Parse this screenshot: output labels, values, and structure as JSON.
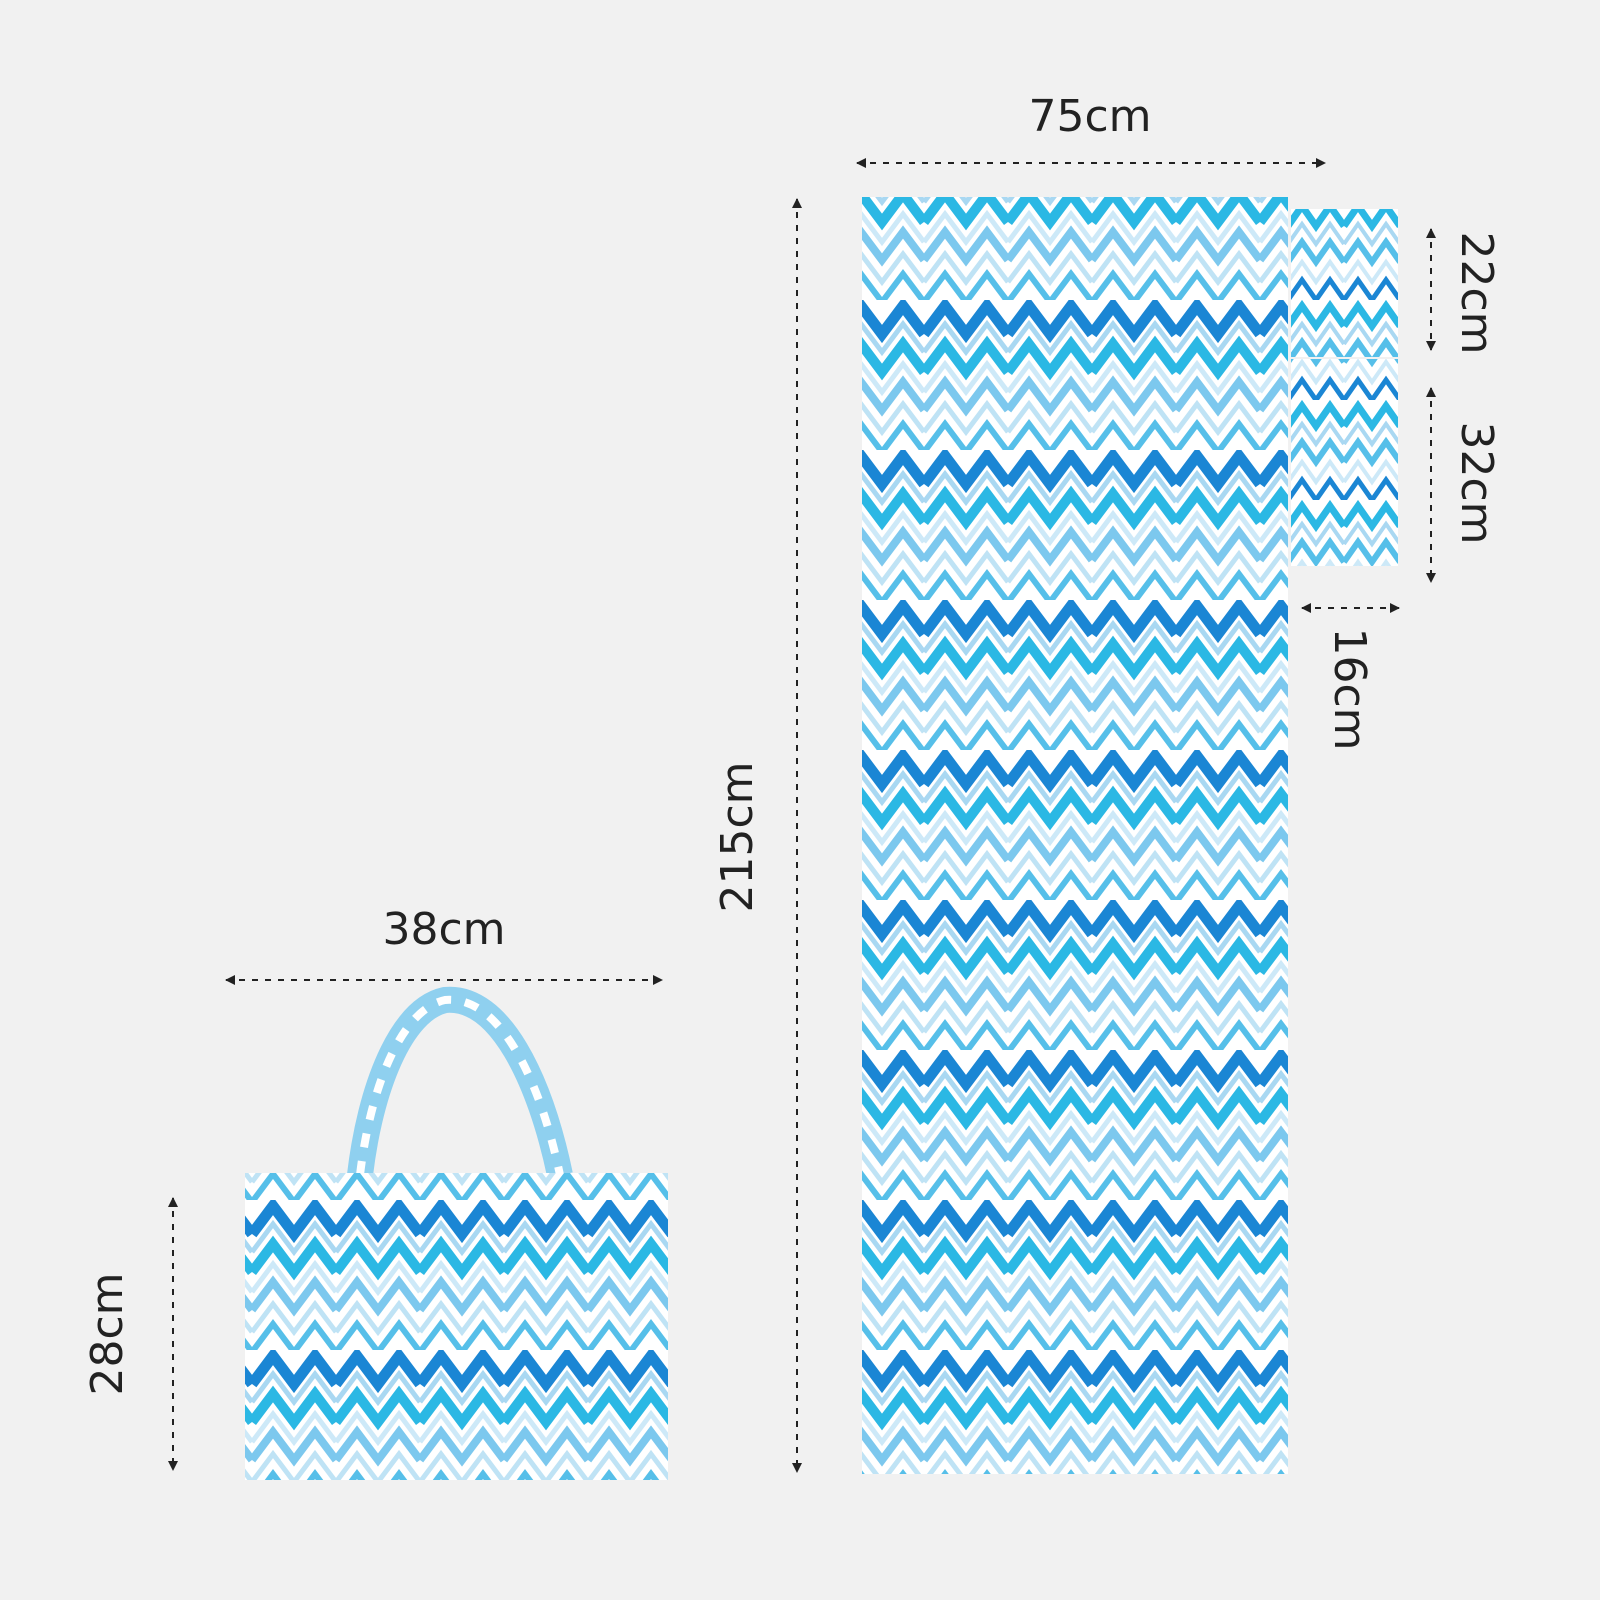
{
  "mat": {
    "width": "75cm",
    "length": "215cm"
  },
  "pillow": {
    "top_height": "22cm",
    "bottom_height": "32cm",
    "width": "16cm"
  },
  "bag": {
    "width": "38cm",
    "height": "28cm"
  }
}
